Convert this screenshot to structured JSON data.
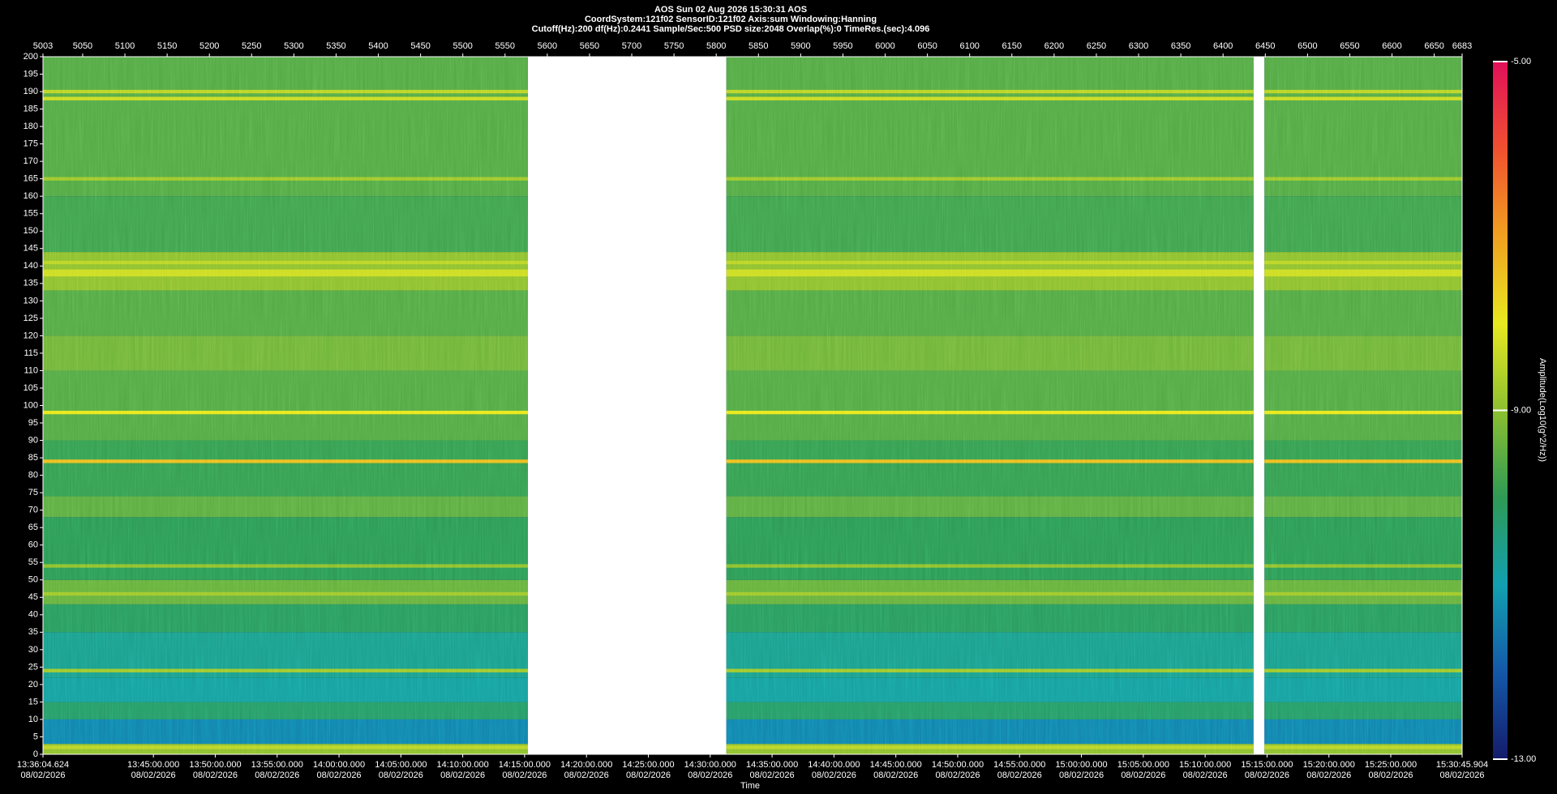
{
  "chart_data": {
    "type": "spectrogram",
    "title_lines": [
      "AOS  Sun 02 Aug 2026 15:30:31  AOS",
      "CoordSystem:121f02   SensorID:121f02    Axis:sum     Windowing:Hanning",
      "Cutoff(Hz):200       df(Hz):0.2441      Sample/Sec:500       PSD size:2048       Overlap(%):0       TimeRes.(sec):4.096"
    ],
    "xlabel": "Time",
    "colorbar_label": "Amplitude(Log10(g^2/Hz))",
    "xlim": [
      5003,
      6683
    ],
    "xticks": [
      5003,
      5050,
      5100,
      5150,
      5200,
      5250,
      5300,
      5350,
      5400,
      5450,
      5500,
      5550,
      5600,
      5650,
      5700,
      5750,
      5800,
      5850,
      5900,
      5950,
      6000,
      6050,
      6100,
      6150,
      6200,
      6250,
      6300,
      6350,
      6400,
      6450,
      6500,
      6550,
      6600,
      6650,
      6683
    ],
    "time_lim": [
      48964.624,
      55845.904
    ],
    "time_ticks": [
      {
        "value": 48964.624,
        "label": "13:36:04.624"
      },
      {
        "value": 49500,
        "label": "13:45:00.000"
      },
      {
        "value": 49800,
        "label": "13:50:00.000"
      },
      {
        "value": 50100,
        "label": "13:55:00.000"
      },
      {
        "value": 50400,
        "label": "14:00:00.000"
      },
      {
        "value": 50700,
        "label": "14:05:00.000"
      },
      {
        "value": 51000,
        "label": "14:10:00.000"
      },
      {
        "value": 51300,
        "label": "14:15:00.000"
      },
      {
        "value": 51600,
        "label": "14:20:00.000"
      },
      {
        "value": 51900,
        "label": "14:25:00.000"
      },
      {
        "value": 52200,
        "label": "14:30:00.000"
      },
      {
        "value": 52500,
        "label": "14:35:00.000"
      },
      {
        "value": 52800,
        "label": "14:40:00.000"
      },
      {
        "value": 53100,
        "label": "14:45:00.000"
      },
      {
        "value": 53400,
        "label": "14:50:00.000"
      },
      {
        "value": 53700,
        "label": "14:55:00.000"
      },
      {
        "value": 54000,
        "label": "15:00:00.000"
      },
      {
        "value": 54300,
        "label": "15:05:00.000"
      },
      {
        "value": 54600,
        "label": "15:10:00.000"
      },
      {
        "value": 54900,
        "label": "15:15:00.000"
      },
      {
        "value": 55200,
        "label": "15:20:00.000"
      },
      {
        "value": 55500,
        "label": "15:25:00.000"
      },
      {
        "value": 55845.904,
        "label": "15:30:45.904"
      }
    ],
    "time_tick_dates": [
      "08/02/2026",
      "08/02/2026",
      "08/02/2026",
      "08/02/2026",
      "08/02/2026",
      "08/02/2026",
      "08/02/2026",
      "08/02/2026",
      "08/02/2026",
      "08/02/2026",
      "08/02/2026",
      "08/02/2026",
      "08/02/2026",
      "08/02/2026",
      "08/02/2026",
      "08/02/2026",
      "08/02/2026",
      "08/02/2026",
      "08/02/2026",
      "08/02/2026",
      "08/02/2026",
      "08/02/2026",
      "08/02/2026"
    ],
    "ylim": [
      0,
      200
    ],
    "yticks": [
      0,
      5,
      10,
      15,
      20,
      25,
      30,
      35,
      40,
      45,
      50,
      55,
      60,
      65,
      70,
      75,
      80,
      85,
      90,
      95,
      100,
      105,
      110,
      115,
      120,
      125,
      130,
      135,
      140,
      145,
      150,
      155,
      160,
      165,
      170,
      175,
      180,
      185,
      190,
      195,
      200
    ],
    "clim": [
      -13,
      -5
    ],
    "cticks": [
      {
        "value": -5,
        "label": "-5.00"
      },
      {
        "value": -9,
        "label": "-9.00"
      },
      {
        "value": -13,
        "label": "-13.00"
      }
    ],
    "colormap": [
      "#141c6b",
      "#1458a8",
      "#12a0b0",
      "#2e9a55",
      "#8cc030",
      "#e8e820",
      "#f0a020",
      "#f05030",
      "#e0105a"
    ],
    "segments": [
      [
        5003,
        5577
      ],
      [
        5812,
        6436
      ],
      [
        6449,
        6683
      ]
    ],
    "bands": [
      {
        "from": 0,
        "to": 3,
        "value": -9.0
      },
      {
        "from": 3,
        "to": 10,
        "value": -11.4
      },
      {
        "from": 10,
        "to": 15,
        "value": -10.2
      },
      {
        "from": 15,
        "to": 22,
        "value": -10.8
      },
      {
        "from": 22,
        "to": 35,
        "value": -10.6
      },
      {
        "from": 35,
        "to": 43,
        "value": -10.1
      },
      {
        "from": 43,
        "to": 50,
        "value": -9.4
      },
      {
        "from": 50,
        "to": 68,
        "value": -10.0
      },
      {
        "from": 68,
        "to": 74,
        "value": -9.5
      },
      {
        "from": 74,
        "to": 90,
        "value": -9.9
      },
      {
        "from": 90,
        "to": 110,
        "value": -9.6
      },
      {
        "from": 110,
        "to": 120,
        "value": -9.3
      },
      {
        "from": 120,
        "to": 133,
        "value": -9.6
      },
      {
        "from": 133,
        "to": 144,
        "value": -9.0
      },
      {
        "from": 144,
        "to": 160,
        "value": -9.8
      },
      {
        "from": 160,
        "to": 200,
        "value": -9.6
      },
      {
        "from": 1.5,
        "to": 2.5,
        "value": -8.5
      },
      {
        "from": 23.5,
        "to": 24.5,
        "value": -8.8
      },
      {
        "from": 45.5,
        "to": 46.5,
        "value": -8.8
      },
      {
        "from": 53.5,
        "to": 54.5,
        "value": -9.0
      },
      {
        "from": 83.5,
        "to": 84.5,
        "value": -7.4
      },
      {
        "from": 97.5,
        "to": 98.5,
        "value": -8.0
      },
      {
        "from": 137,
        "to": 139,
        "value": -8.3
      },
      {
        "from": 140.5,
        "to": 141.5,
        "value": -8.5
      },
      {
        "from": 164.5,
        "to": 165.5,
        "value": -8.8
      },
      {
        "from": 187.5,
        "to": 188.5,
        "value": -8.3
      },
      {
        "from": 189.5,
        "to": 190.5,
        "value": -8.5
      }
    ]
  }
}
